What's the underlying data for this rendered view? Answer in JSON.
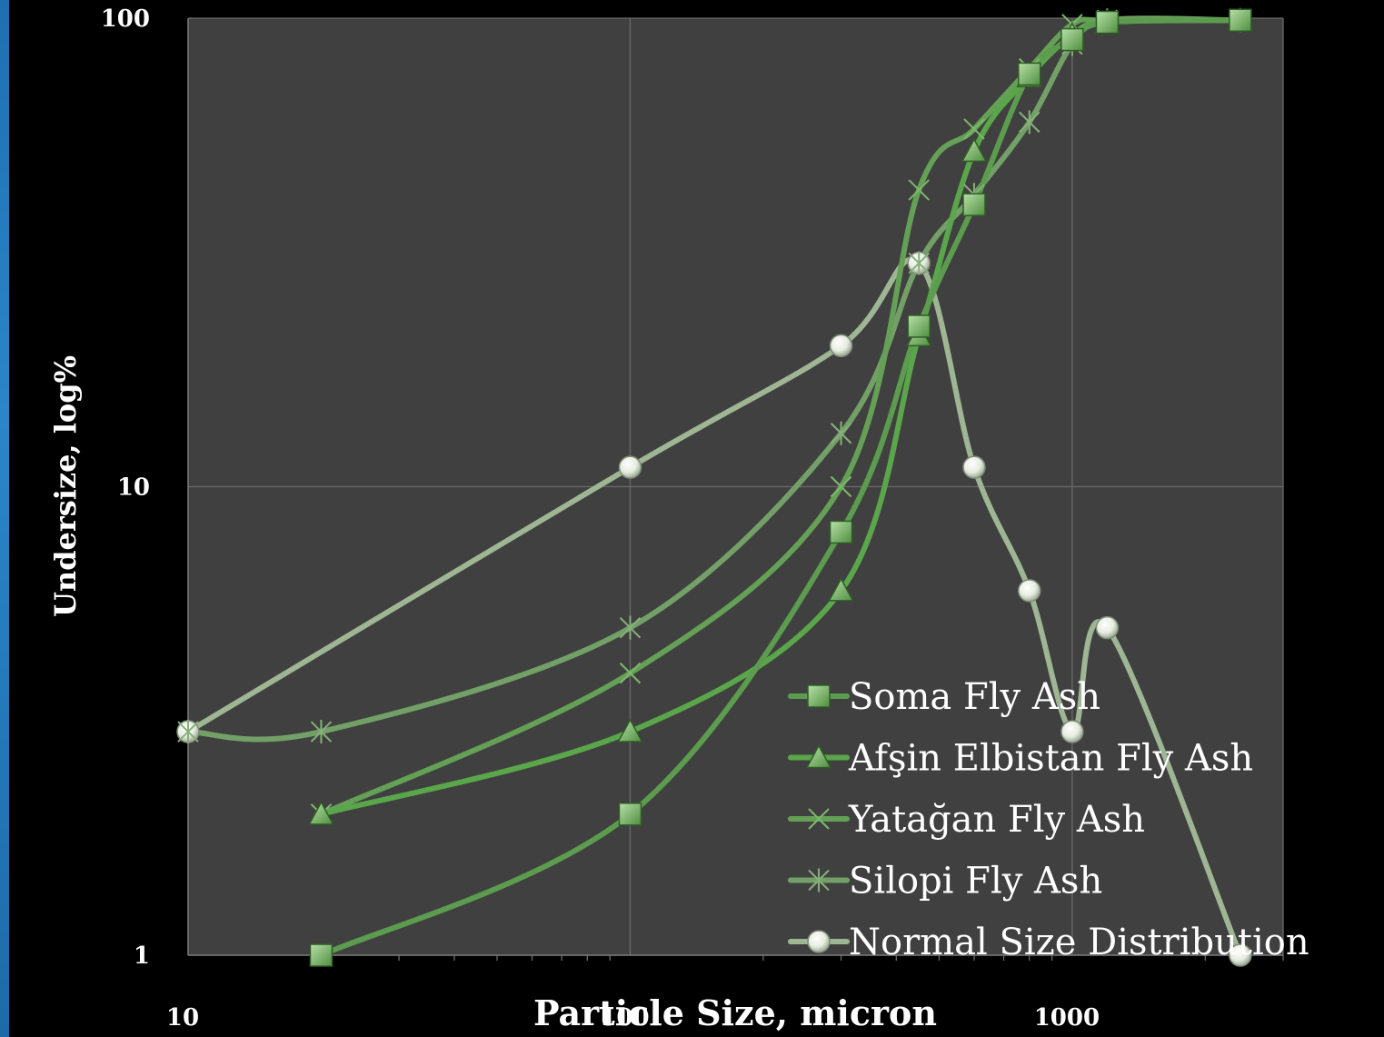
{
  "chart_data": {
    "type": "line",
    "xlabel": "Particle Size, micron",
    "ylabel": "Undersize, log%",
    "x_scale": "log",
    "y_scale": "log",
    "xlim": [
      10,
      3000
    ],
    "ylim": [
      1,
      100
    ],
    "x_ticks": [
      "10",
      "100",
      "1000"
    ],
    "y_ticks": [
      "1",
      "10",
      "100"
    ],
    "grid": true,
    "legend_position": "bottom-right",
    "series": [
      {
        "name": "Soma Fly Ash",
        "marker": "square",
        "color": "#5c9c4e",
        "x": [
          20,
          100,
          300,
          450,
          600,
          800,
          1000,
          1200,
          2400
        ],
        "y": [
          1,
          2,
          8,
          22,
          40,
          76,
          90,
          98,
          99
        ]
      },
      {
        "name": "Afşin Elbistan Fly Ash",
        "marker": "triangle",
        "color": "#5aa64a",
        "x": [
          20,
          100,
          300,
          450,
          600,
          800,
          1000,
          1200,
          2400
        ],
        "y": [
          2,
          3,
          6,
          21,
          52,
          75,
          92,
          98,
          99
        ]
      },
      {
        "name": "Yatağan Fly Ash",
        "marker": "x",
        "color": "#64a055",
        "x": [
          20,
          100,
          300,
          450,
          600,
          800,
          1000,
          1200,
          2400
        ],
        "y": [
          2,
          4,
          10,
          43,
          58,
          78,
          97,
          99,
          99
        ]
      },
      {
        "name": "Silopi Fly Ash",
        "marker": "asterisk",
        "color": "#73a067",
        "x": [
          10,
          20,
          100,
          300,
          450,
          600,
          800,
          1000,
          1200,
          2400
        ],
        "y": [
          3,
          3,
          5,
          13,
          30,
          42,
          60,
          88,
          99,
          99
        ]
      },
      {
        "name": "Normal Size Distribution",
        "marker": "circle",
        "color": "#9eb694",
        "x": [
          10,
          100,
          300,
          450,
          600,
          800,
          1000,
          1200,
          2400
        ],
        "y": [
          3,
          11,
          20,
          30,
          11,
          6,
          3,
          5,
          1
        ]
      }
    ]
  }
}
